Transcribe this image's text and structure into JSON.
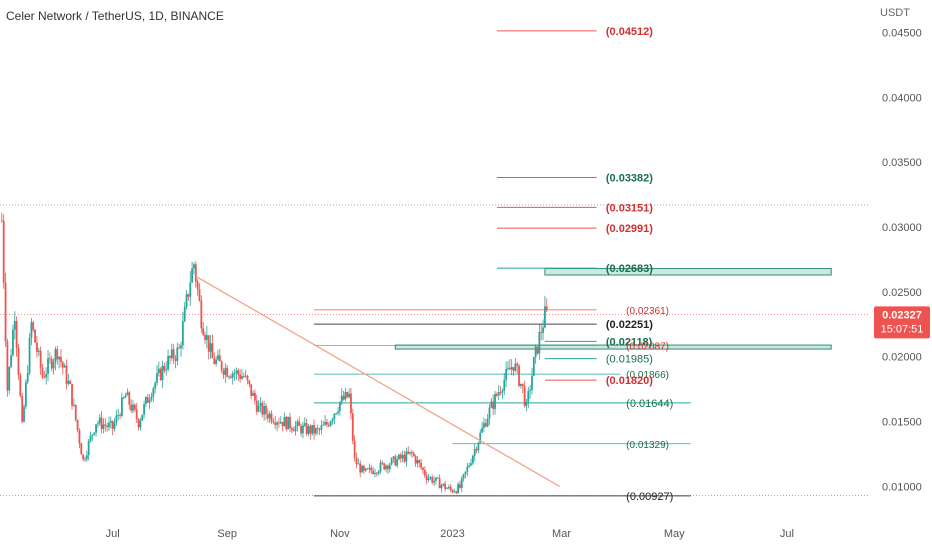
{
  "header": {
    "symbol_title": "Celer Network / TetherUS, 1D, BINANCE",
    "currency": "USDT"
  },
  "colors": {
    "up": "#26a69a",
    "down": "#ef5350",
    "trendline": "#f4a38c",
    "zone_fill": "#cde8e0",
    "zone_border": "#2b8f7c",
    "price_badge": "#ef5350",
    "green_label": "#1b6e4a",
    "red_label": "#d32f2f"
  },
  "chart_data": {
    "type": "candlestick",
    "title": "Celer Network / TetherUS, 1D, BINANCE",
    "y_axis": {
      "ticks": [
        "0.04500",
        "0.04000",
        "0.03500",
        "0.03000",
        "0.02500",
        "0.02000",
        "0.01500",
        "0.01000"
      ],
      "tick_values": [
        0.045,
        0.04,
        0.035,
        0.03,
        0.025,
        0.02,
        0.015,
        0.01
      ]
    },
    "x_axis": {
      "ticks": [
        "Jul",
        "Sep",
        "Nov",
        "2023",
        "Mar",
        "May",
        "Jul"
      ],
      "tick_dates": [
        "2022-07-01",
        "2022-09-01",
        "2022-11-01",
        "2023-01-01",
        "2023-03-01",
        "2023-05-01",
        "2023-07-01"
      ]
    },
    "date_range": [
      "2022-05-01",
      "2023-08-15"
    ],
    "y_range": [
      0.0078,
      0.0475
    ],
    "current_price": {
      "value": "0.02327",
      "countdown": "15:07:51"
    },
    "price_series_keypoints": [
      [
        "2022-05-02",
        0.0305
      ],
      [
        "2022-05-05",
        0.0175
      ],
      [
        "2022-05-09",
        0.0235
      ],
      [
        "2022-05-13",
        0.0145
      ],
      [
        "2022-05-18",
        0.0225
      ],
      [
        "2022-05-24",
        0.0185
      ],
      [
        "2022-06-01",
        0.0205
      ],
      [
        "2022-06-08",
        0.0175
      ],
      [
        "2022-06-15",
        0.012
      ],
      [
        "2022-06-22",
        0.015
      ],
      [
        "2022-07-01",
        0.0145
      ],
      [
        "2022-07-08",
        0.017
      ],
      [
        "2022-07-15",
        0.015
      ],
      [
        "2022-07-22",
        0.0175
      ],
      [
        "2022-07-30",
        0.0195
      ],
      [
        "2022-08-06",
        0.0205
      ],
      [
        "2022-08-12",
        0.026
      ],
      [
        "2022-08-14",
        0.0272
      ],
      [
        "2022-08-18",
        0.023
      ],
      [
        "2022-08-24",
        0.0198
      ],
      [
        "2022-09-01",
        0.019
      ],
      [
        "2022-09-10",
        0.0185
      ],
      [
        "2022-09-18",
        0.016
      ],
      [
        "2022-09-28",
        0.0152
      ],
      [
        "2022-10-10",
        0.0145
      ],
      [
        "2022-10-20",
        0.0142
      ],
      [
        "2022-10-25",
        0.0148
      ],
      [
        "2022-11-01",
        0.0165
      ],
      [
        "2022-11-06",
        0.017
      ],
      [
        "2022-11-09",
        0.012
      ],
      [
        "2022-11-14",
        0.011
      ],
      [
        "2022-11-28",
        0.0118
      ],
      [
        "2022-12-10",
        0.0125
      ],
      [
        "2022-12-18",
        0.0108
      ],
      [
        "2022-12-31",
        0.0097
      ],
      [
        "2023-01-05",
        0.0099
      ],
      [
        "2023-01-12",
        0.0125
      ],
      [
        "2023-01-20",
        0.0155
      ],
      [
        "2023-01-28",
        0.018
      ],
      [
        "2023-02-03",
        0.0195
      ],
      [
        "2023-02-08",
        0.0175
      ],
      [
        "2023-02-10",
        0.016
      ],
      [
        "2023-02-14",
        0.0195
      ],
      [
        "2023-02-17",
        0.0215
      ],
      [
        "2023-02-20",
        0.0232
      ],
      [
        "2023-02-22",
        0.02327
      ]
    ],
    "trendline": {
      "from": [
        "2022-08-15",
        0.0262
      ],
      "to": [
        "2023-02-28",
        0.01
      ]
    },
    "dotted_lines": [
      0.0317,
      0.0093
    ],
    "zones": [
      {
        "from": "2023-02-20",
        "to": "2023-07-25",
        "low": 0.0263,
        "high": 0.0268
      },
      {
        "from": "2022-12-01",
        "to": "2023-07-25",
        "low": 0.0206,
        "high": 0.0209
      }
    ],
    "levels": [
      {
        "label": "(0.04512)",
        "value": 0.04512,
        "color": "red",
        "from": "2023-01-25",
        "to": "2023-03-20",
        "label_style": "bold",
        "label_date": "2023-03-25"
      },
      {
        "label": "(0.03382)",
        "value": 0.03382,
        "color": "green",
        "from": "2023-01-25",
        "to": "2023-03-20",
        "label_style": "bold",
        "label_date": "2023-03-25"
      },
      {
        "label": "(0.03151)",
        "value": 0.03151,
        "color": "red",
        "from": "2023-01-25",
        "to": "2023-03-20",
        "label_style": "bold",
        "label_date": "2023-03-25"
      },
      {
        "label": "(0.02991)",
        "value": 0.02991,
        "color": "red",
        "from": "2023-01-25",
        "to": "2023-03-20",
        "label_style": "bold",
        "label_date": "2023-03-25"
      },
      {
        "label": "(0.02683)",
        "value": 0.02683,
        "color": "green",
        "from": "2023-01-25",
        "to": "2023-03-20",
        "label_style": "bold",
        "label_date": "2023-03-25"
      },
      {
        "label": "(0.02361)",
        "value": 0.02361,
        "color": "red",
        "from": "2022-10-18",
        "to": "2023-03-20",
        "label_style": "small",
        "label_date": "2023-04-05"
      },
      {
        "label": "(0.02251)",
        "value": 0.02251,
        "color": "black",
        "from": "2022-10-18",
        "to": "2023-03-20",
        "label_style": "bold",
        "label_date": "2023-03-25"
      },
      {
        "label": "(0.02118)",
        "value": 0.02118,
        "color": "green",
        "from": "2023-02-20",
        "to": "2023-03-20",
        "label_style": "bold",
        "label_date": "2023-03-25"
      },
      {
        "label": "(0.02087)",
        "value": 0.02087,
        "color": "red",
        "from": "2022-10-18",
        "to": "2023-03-20",
        "label_style": "small",
        "label_date": "2023-04-05"
      },
      {
        "label": "(0.01985)",
        "value": 0.01985,
        "color": "green",
        "from": "2023-02-20",
        "to": "2023-03-20",
        "label_style": "normal",
        "label_date": "2023-03-25"
      },
      {
        "label": "(0.01866)",
        "value": 0.01866,
        "color": "green",
        "from": "2022-10-18",
        "to": "2023-04-02",
        "label_style": "small",
        "label_date": "2023-04-05"
      },
      {
        "label": "(0.01820)",
        "value": 0.0182,
        "color": "red",
        "from": "2023-02-20",
        "to": "2023-03-20",
        "label_style": "bold",
        "label_date": "2023-03-25"
      },
      {
        "label": "(0.01644)",
        "value": 0.01644,
        "color": "green",
        "from": "2022-10-18",
        "to": "2023-05-10",
        "label_style": "normal",
        "label_date": "2023-04-05"
      },
      {
        "label": "(0.01329)",
        "value": 0.01329,
        "color": "green",
        "from": "2023-01-01",
        "to": "2023-05-10",
        "label_style": "small",
        "label_date": "2023-04-05"
      },
      {
        "label": "(0.00927)",
        "value": 0.00927,
        "color": "black",
        "from": "2022-10-18",
        "to": "2023-05-10",
        "label_style": "normal",
        "label_date": "2023-04-05"
      }
    ]
  }
}
